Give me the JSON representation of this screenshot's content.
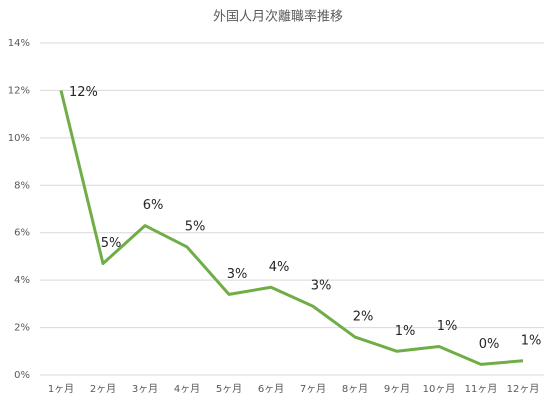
{
  "chart_data": {
    "type": "line",
    "title": "外国人月次離職率推移",
    "categories": [
      "1ヶ月",
      "2ヶ月",
      "3ヶ月",
      "4ヶ月",
      "5ヶ月",
      "6ヶ月",
      "7ヶ月",
      "8ヶ月",
      "9ヶ月",
      "10ヶ月",
      "11ヶ月",
      "12ヶ月"
    ],
    "series": [
      {
        "color": "#70ad47",
        "values": [
          12,
          4.7,
          6.3,
          5.4,
          3.4,
          3.7,
          2.9,
          1.6,
          1.0,
          1.2,
          0.45,
          0.6
        ],
        "value_labels": [
          "12%",
          "5%",
          "6%",
          "5%",
          "3%",
          "4%",
          "3%",
          "2%",
          "1%",
          "1%",
          "0%",
          "1%"
        ]
      }
    ],
    "ylim": [
      0,
      14
    ],
    "yticks": [
      {
        "value": 0,
        "label": "0%"
      },
      {
        "value": 2,
        "label": "2%"
      },
      {
        "value": 4,
        "label": "4%"
      },
      {
        "value": 6,
        "label": "6%"
      },
      {
        "value": 8,
        "label": "8%"
      },
      {
        "value": 10,
        "label": "10%"
      },
      {
        "value": 12,
        "label": "12%"
      },
      {
        "value": 14,
        "label": "14%"
      }
    ],
    "grid": true
  }
}
